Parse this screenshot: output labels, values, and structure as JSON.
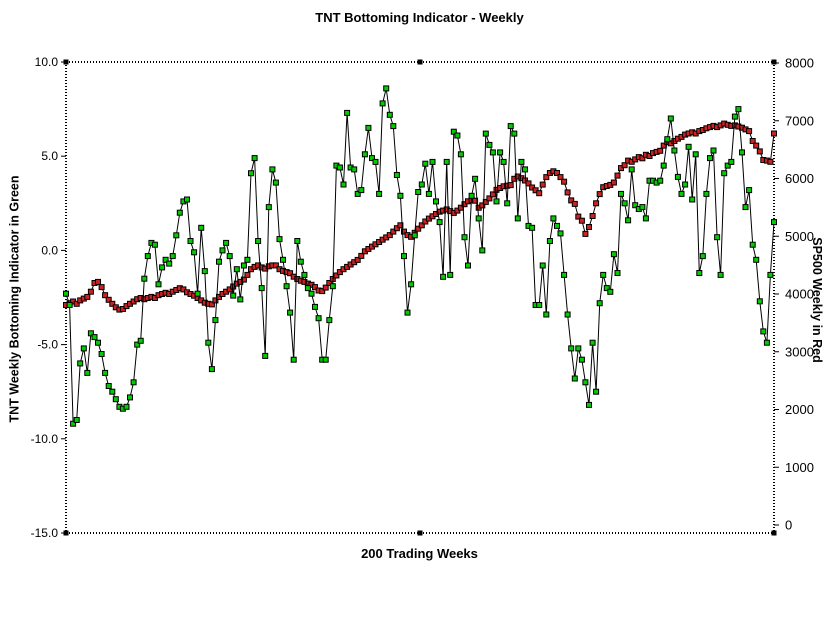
{
  "chart_data": {
    "type": "line",
    "title": "TNT Bottoming Indicator - Weekly",
    "xlabel": "200 Trading Weeks",
    "grid": false,
    "legend": "none",
    "frame_style": "dotted",
    "left_axis": {
      "label": "TNT Weekly Bottoming Indicator in Green",
      "tick_labels": [
        "10.0",
        "5.0",
        "0.0",
        "-5.0",
        "-10.0",
        "-15.0"
      ],
      "tick_values": [
        10,
        5,
        0,
        -5,
        -10,
        -15
      ],
      "range": [
        -15,
        10
      ]
    },
    "right_axis": {
      "label": "SP500 Weekly in Red",
      "tick_labels": [
        "8000",
        "7000",
        "6000",
        "5000",
        "4000",
        "3000",
        "2000",
        "1000",
        "0"
      ],
      "tick_values": [
        8000,
        7000,
        6000,
        5000,
        4000,
        3000,
        2000,
        1000,
        0
      ],
      "range": [
        0,
        8000
      ]
    },
    "x_count": 200,
    "series": [
      {
        "name": "TNT Weekly Bottoming Indicator",
        "axis": "left",
        "color": "#00cc00",
        "marker": "square",
        "values": [
          -2.3,
          -2.9,
          -9.2,
          -9.0,
          -6.0,
          -5.2,
          -6.5,
          -4.4,
          -4.6,
          -4.9,
          -5.5,
          -6.5,
          -7.2,
          -7.5,
          -7.9,
          -8.3,
          -8.4,
          -8.3,
          -7.8,
          -7.0,
          -5.0,
          -4.8,
          -1.5,
          -0.3,
          0.4,
          0.3,
          -1.8,
          -0.9,
          -0.5,
          -0.7,
          -0.3,
          0.8,
          2.0,
          2.6,
          2.7,
          0.5,
          -0.1,
          -2.3,
          1.2,
          -1.1,
          -4.9,
          -6.3,
          -3.7,
          -0.6,
          0.0,
          0.4,
          -0.3,
          -2.4,
          -1.0,
          -2.6,
          -0.8,
          -0.5,
          4.1,
          4.9,
          0.5,
          -2.0,
          -5.6,
          2.3,
          4.3,
          3.6,
          0.6,
          -0.5,
          -1.9,
          -3.3,
          -5.8,
          0.5,
          -0.6,
          -1.3,
          -2.0,
          -2.3,
          -3.0,
          -3.6,
          -5.8,
          -5.8,
          -3.7,
          -1.9,
          4.5,
          4.4,
          3.5,
          7.3,
          4.4,
          4.3,
          3.0,
          3.2,
          5.1,
          6.5,
          4.9,
          4.7,
          3.0,
          7.8,
          8.6,
          7.2,
          6.6,
          4.0,
          2.9,
          -0.3,
          -3.3,
          -1.8,
          0.8,
          3.1,
          3.5,
          4.6,
          3.0,
          4.7,
          2.6,
          1.5,
          -1.4,
          4.7,
          -1.3,
          6.3,
          6.1,
          5.1,
          0.7,
          -0.8,
          2.9,
          3.8,
          1.7,
          0.0,
          6.2,
          5.6,
          5.2,
          2.6,
          5.2,
          4.7,
          2.5,
          6.6,
          6.2,
          1.7,
          4.7,
          4.3,
          1.3,
          1.2,
          -2.9,
          -2.9,
          -0.8,
          -3.4,
          0.5,
          1.7,
          1.3,
          0.9,
          -1.3,
          -3.4,
          -5.2,
          -6.8,
          -5.2,
          -5.8,
          -7.0,
          -8.2,
          -4.9,
          -7.5,
          -2.8,
          -1.3,
          -2.0,
          -2.2,
          -0.2,
          -1.2,
          3.0,
          2.5,
          1.6,
          4.3,
          2.4,
          2.2,
          2.3,
          1.7,
          3.7,
          3.7,
          3.6,
          3.7,
          4.5,
          5.9,
          7.0,
          5.3,
          3.9,
          3.0,
          3.5,
          5.5,
          2.7,
          5.1,
          -1.2,
          -0.3,
          3.0,
          4.9,
          5.3,
          0.7,
          -1.3,
          4.1,
          4.5,
          4.7,
          7.1,
          7.5,
          5.2,
          2.3,
          3.2,
          0.3,
          -0.5,
          -2.7,
          -4.3,
          -4.9,
          -1.3,
          1.5
        ]
      },
      {
        "name": "SP500 Weekly",
        "axis": "right",
        "color": "#cc2222",
        "marker": "square",
        "values": [
          3810,
          3840,
          3870,
          3830,
          3890,
          3920,
          3950,
          4040,
          4190,
          4210,
          4120,
          3980,
          3900,
          3830,
          3770,
          3730,
          3740,
          3790,
          3830,
          3870,
          3910,
          3930,
          3910,
          3930,
          3950,
          3930,
          3980,
          4000,
          4020,
          4000,
          4040,
          4070,
          4100,
          4080,
          4030,
          4000,
          3970,
          3930,
          3890,
          3850,
          3830,
          3820,
          3890,
          3950,
          4000,
          4040,
          4080,
          4130,
          4180,
          4210,
          4250,
          4330,
          4430,
          4470,
          4495,
          4460,
          4440,
          4480,
          4495,
          4495,
          4430,
          4400,
          4380,
          4360,
          4300,
          4260,
          4230,
          4210,
          4180,
          4160,
          4120,
          4060,
          4050,
          4110,
          4190,
          4260,
          4320,
          4380,
          4430,
          4470,
          4510,
          4550,
          4590,
          4660,
          4740,
          4780,
          4820,
          4860,
          4900,
          4940,
          4980,
          5020,
          5080,
          5140,
          5190,
          5080,
          5020,
          4990,
          5060,
          5130,
          5190,
          5255,
          5305,
          5345,
          5385,
          5425,
          5445,
          5465,
          5435,
          5405,
          5445,
          5495,
          5555,
          5605,
          5625,
          5615,
          5495,
          5535,
          5595,
          5655,
          5725,
          5805,
          5835,
          5865,
          5875,
          5885,
          5995,
          6035,
          6005,
          5965,
          5915,
          5845,
          5795,
          5745,
          5895,
          6025,
          6095,
          6125,
          6095,
          6025,
          5945,
          5760,
          5620,
          5560,
          5340,
          5270,
          5040,
          5160,
          5350,
          5570,
          5730,
          5850,
          5870,
          5890,
          5930,
          6050,
          6180,
          6230,
          6310,
          6290,
          6330,
          6370,
          6350,
          6410,
          6390,
          6440,
          6460,
          6480,
          6570,
          6630,
          6610,
          6650,
          6690,
          6720,
          6760,
          6780,
          6800,
          6780,
          6820,
          6840,
          6870,
          6890,
          6910,
          6890,
          6920,
          6950,
          6930,
          6910,
          6920,
          6900,
          6880,
          6850,
          6820,
          6650,
          6570,
          6470,
          6320,
          6310,
          6290,
          6780
        ]
      }
    ]
  }
}
